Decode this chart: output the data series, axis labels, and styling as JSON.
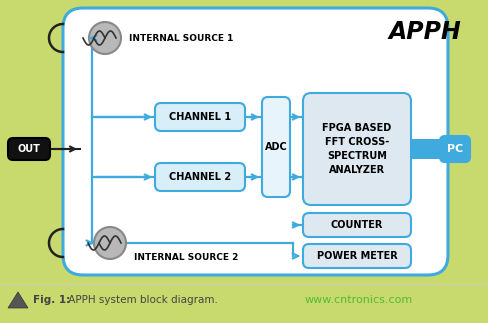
{
  "bg_color": "#c8d96e",
  "main_box_facecolor": "#ffffff",
  "main_box_edge": "#3eaadd",
  "channel_box_facecolor": "#d8eef8",
  "channel_box_edge": "#3eaadd",
  "adc_box_facecolor": "#e8f4fc",
  "adc_box_edge": "#3eaadd",
  "fpga_box_facecolor": "#dde8f0",
  "fpga_box_edge": "#3eaadd",
  "counter_box_facecolor": "#dde8f0",
  "counter_box_edge": "#3eaadd",
  "power_box_facecolor": "#dde8f0",
  "power_box_edge": "#3eaadd",
  "pc_box_facecolor": "#3eaadd",
  "pc_box_edge": "#3eaadd",
  "out_box_facecolor": "#111111",
  "out_box_edge": "#000000",
  "source_circle_facecolor": "#b8b8b8",
  "source_circle_edge": "#888888",
  "arrow_color": "#3eaadd",
  "black_arrow_color": "#222222",
  "title_text": "APPH",
  "caption_bold": "Fig. 1:",
  "caption_rest": " APPH system block diagram.",
  "website_text": "www.cntronics.com",
  "caption_color": "#444444",
  "website_color": "#55bb33",
  "white": "#ffffff",
  "black": "#111111"
}
